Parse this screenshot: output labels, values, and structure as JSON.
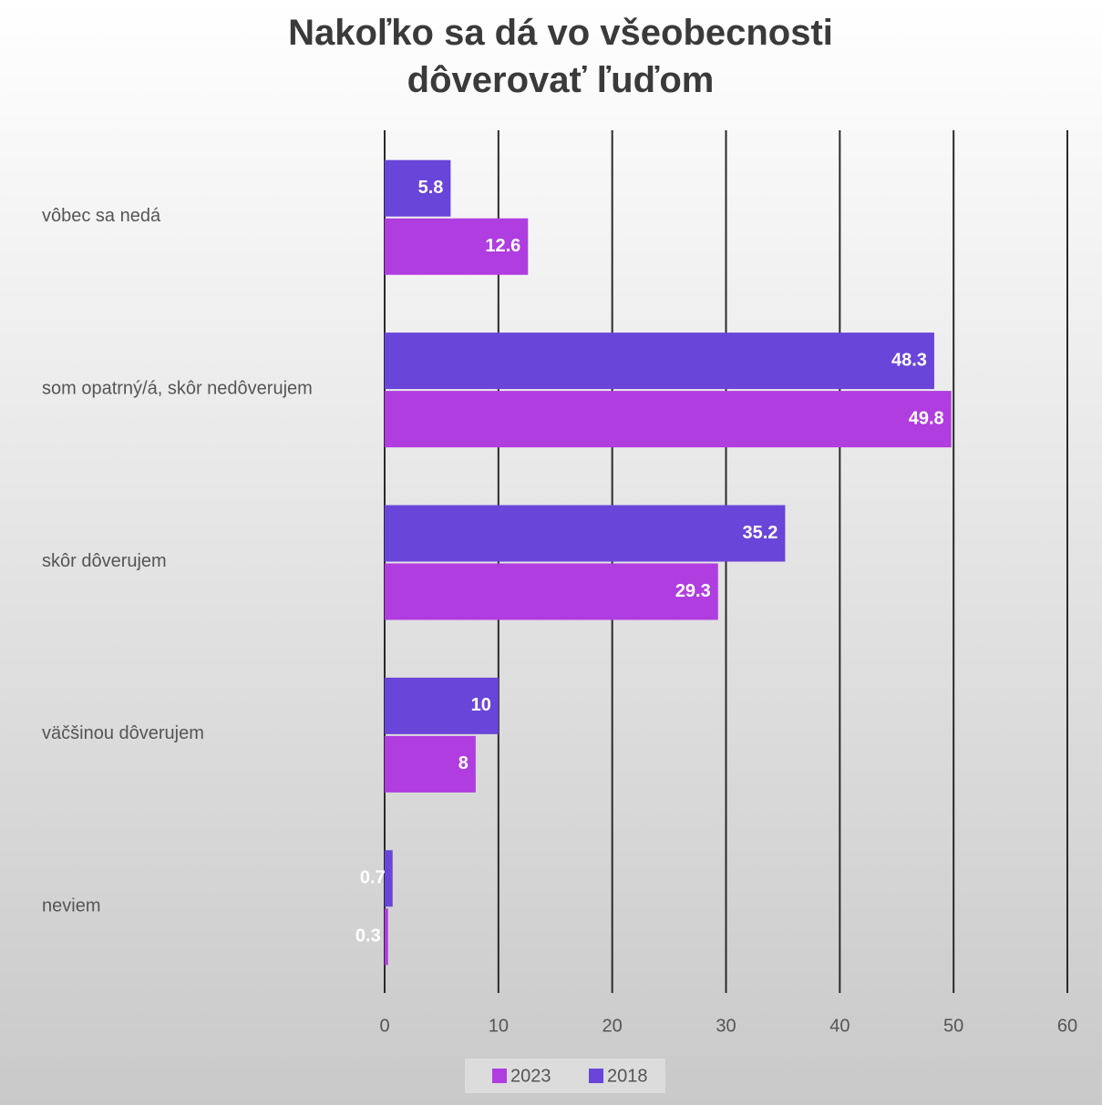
{
  "chart_data": {
    "type": "bar",
    "orientation": "horizontal",
    "title": "Nakoľko sa dá vo všeobecnosti dôverovať ľuďom",
    "categories": [
      "vôbec sa nedá",
      "som opatrný/á, skôr nedôverujem",
      "skôr dôverujem",
      "väčšinou dôverujem",
      "neviem"
    ],
    "series": [
      {
        "name": "2023",
        "color": "#b03de0",
        "values": [
          12.6,
          49.8,
          29.3,
          8,
          0.3
        ]
      },
      {
        "name": "2018",
        "color": "#6a45d9",
        "values": [
          5.8,
          48.3,
          35.2,
          10,
          0.7
        ]
      }
    ],
    "xlim": [
      0,
      60
    ],
    "xticks": [
      0,
      10,
      20,
      30,
      40,
      50,
      60
    ],
    "grid": true,
    "legend": "bottom"
  }
}
